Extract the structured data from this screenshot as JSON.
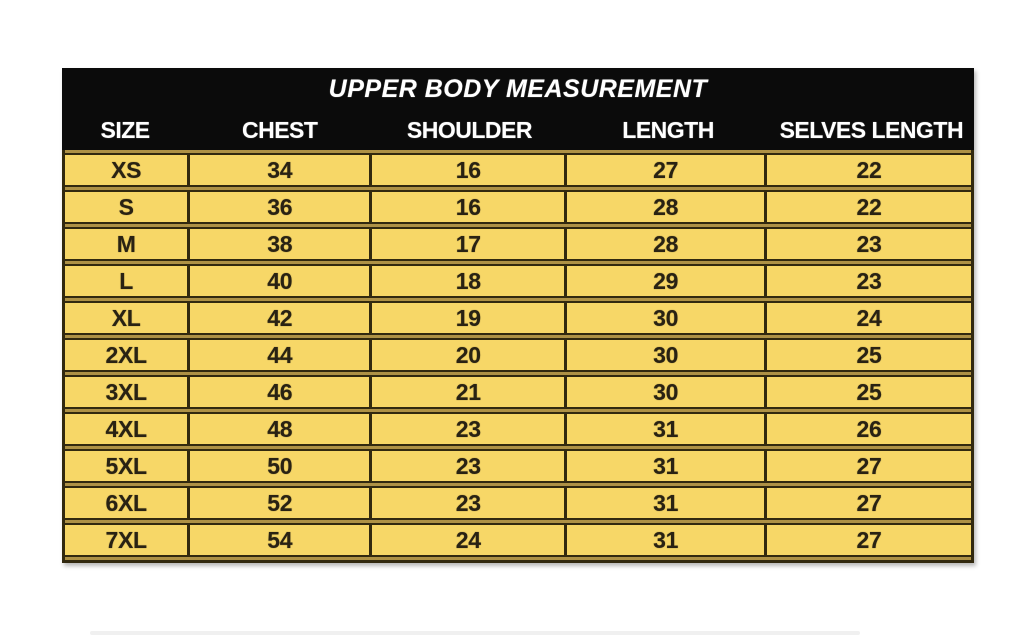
{
  "chart_data": {
    "type": "table",
    "title": "UPPER BODY MEASUREMENT",
    "columns": [
      "SIZE",
      "CHEST",
      "SHOULDER",
      "LENGTH",
      "SELVES LENGTH"
    ],
    "rows": [
      [
        "XS",
        "34",
        "16",
        "27",
        "22"
      ],
      [
        "S",
        "36",
        "16",
        "28",
        "22"
      ],
      [
        "M",
        "38",
        "17",
        "28",
        "23"
      ],
      [
        "L",
        "40",
        "18",
        "29",
        "23"
      ],
      [
        "XL",
        "42",
        "19",
        "30",
        "24"
      ],
      [
        "2XL",
        "44",
        "20",
        "30",
        "25"
      ],
      [
        "3XL",
        "46",
        "21",
        "30",
        "25"
      ],
      [
        "4XL",
        "48",
        "23",
        "31",
        "26"
      ],
      [
        "5XL",
        "50",
        "23",
        "31",
        "27"
      ],
      [
        "6XL",
        "52",
        "23",
        "31",
        "27"
      ],
      [
        "7XL",
        "54",
        "24",
        "31",
        "27"
      ]
    ],
    "layout": {
      "header_style": "black band with white bold text, title italic",
      "body_style": "yellow cells with dark grid lines, gold gaps between rows",
      "grid": true
    }
  },
  "colors": {
    "header_bg": "#0b0b0b",
    "header_text": "#ffffff",
    "cell_bg": "#f7d767",
    "grid_line": "#32290f",
    "row_gap": "#ae9145",
    "cell_text": "#292213",
    "page_bg": "#ffffff"
  }
}
